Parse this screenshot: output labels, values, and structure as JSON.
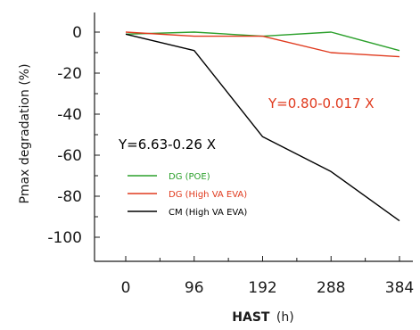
{
  "chart_data": {
    "type": "line",
    "x": [
      0,
      96,
      192,
      288,
      384
    ],
    "series": [
      {
        "name": "DG (POE)",
        "color": "#2ca02c",
        "values": [
          -1,
          0,
          -2,
          0,
          -9
        ]
      },
      {
        "name": "DG (High VA EVA)",
        "color": "#e03a1e",
        "values": [
          0,
          -2,
          -2,
          -10,
          -12
        ]
      },
      {
        "name": "CM (High VA EVA)",
        "color": "#000000",
        "values": [
          -1,
          -9,
          -51,
          -68,
          -92
        ]
      }
    ],
    "xlabel_bold": "HAST",
    "xlabel_unit": "(h)",
    "ylabel": "Pmax degradation (%)",
    "xlim": [
      0,
      384
    ],
    "ylim": [
      -100,
      0
    ],
    "xticks": [
      "0",
      "96",
      "192",
      "288",
      "384"
    ],
    "yticks": [
      "0",
      "-20",
      "-40",
      "-60",
      "-80",
      "-100"
    ],
    "grid": false,
    "legend_position": "center-left",
    "annotations": [
      {
        "text": "Y=0.80-0.017 X",
        "color": "#e03a1e"
      },
      {
        "text": "Y=6.63-0.26 X",
        "color": "#000000"
      }
    ]
  }
}
